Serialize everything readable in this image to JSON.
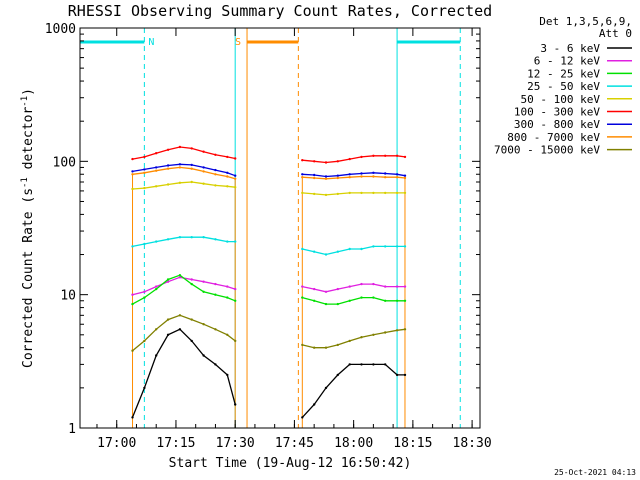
{
  "chart_data": {
    "type": "line",
    "title": "RHESSI Observing Summary Count Rates, Corrected",
    "xlabel": "Start Time (19-Aug-12 16:50:42)",
    "ylabel_main": "Corrected Count Rate (s",
    "ylabel_sup1": "-1",
    "ylabel_mid": " detector",
    "ylabel_sup2": "-1",
    "ylabel_end": ")",
    "y_scale": "log",
    "ylim": [
      1,
      1000
    ],
    "xlim": [
      "16:50:42",
      "18:32:00"
    ],
    "x_ticks": [
      "17:00",
      "17:15",
      "17:30",
      "17:45",
      "18:00",
      "18:15",
      "18:30"
    ],
    "y_ticks": [
      "1",
      "10",
      "100",
      "1000"
    ],
    "legend_header": [
      "Det 1,3,5,6,9,",
      "Att 0"
    ],
    "legend_position": "right",
    "footer": "25-Oct-2021 04:13",
    "series": [
      {
        "name": "3 - 6 keV",
        "color": "#000000",
        "segments": [
          {
            "t": [
              "17:04:00",
              "17:07:00",
              "17:10:00",
              "17:13:00",
              "17:16:00",
              "17:19:00",
              "17:22:00",
              "17:25:00",
              "17:28:00",
              "17:30:00"
            ],
            "v": [
              1.2,
              2.0,
              3.5,
              5.0,
              5.5,
              4.5,
              3.5,
              3.0,
              2.5,
              1.5
            ]
          },
          {
            "t": [
              "17:47:00",
              "17:50:00",
              "17:53:00",
              "17:56:00",
              "17:59:00",
              "18:02:00",
              "18:05:00",
              "18:08:00",
              "18:11:00",
              "18:13:00"
            ],
            "v": [
              1.2,
              1.5,
              2.0,
              2.5,
              3.0,
              3.0,
              3.0,
              3.0,
              2.5,
              2.5
            ]
          }
        ]
      },
      {
        "name": "6 - 12 keV",
        "color": "#e020e0",
        "segments": [
          {
            "t": [
              "17:04:00",
              "17:07:00",
              "17:10:00",
              "17:13:00",
              "17:16:00",
              "17:19:00",
              "17:22:00",
              "17:25:00",
              "17:28:00",
              "17:30:00"
            ],
            "v": [
              10.0,
              10.5,
              11.5,
              12.5,
              13.5,
              13.0,
              12.5,
              12.0,
              11.5,
              11.0
            ]
          },
          {
            "t": [
              "17:47:00",
              "17:50:00",
              "17:53:00",
              "17:56:00",
              "17:59:00",
              "18:02:00",
              "18:05:00",
              "18:08:00",
              "18:11:00",
              "18:13:00"
            ],
            "v": [
              11.5,
              11.0,
              10.5,
              11.0,
              11.5,
              12.0,
              12.0,
              11.5,
              11.5,
              11.5
            ]
          }
        ]
      },
      {
        "name": "12 - 25 keV",
        "color": "#00e000",
        "segments": [
          {
            "t": [
              "17:04:00",
              "17:07:00",
              "17:10:00",
              "17:13:00",
              "17:16:00",
              "17:19:00",
              "17:22:00",
              "17:25:00",
              "17:28:00",
              "17:30:00"
            ],
            "v": [
              8.5,
              9.5,
              11.0,
              13.0,
              14.0,
              12.0,
              10.5,
              10.0,
              9.5,
              9.0
            ]
          },
          {
            "t": [
              "17:47:00",
              "17:50:00",
              "17:53:00",
              "17:56:00",
              "17:59:00",
              "18:02:00",
              "18:05:00",
              "18:08:00",
              "18:11:00",
              "18:13:00"
            ],
            "v": [
              9.5,
              9.0,
              8.5,
              8.5,
              9.0,
              9.5,
              9.5,
              9.0,
              9.0,
              9.0
            ]
          }
        ]
      },
      {
        "name": "25 - 50 keV",
        "color": "#00e0e0",
        "segments": [
          {
            "t": [
              "17:04:00",
              "17:07:00",
              "17:10:00",
              "17:13:00",
              "17:16:00",
              "17:19:00",
              "17:22:00",
              "17:25:00",
              "17:28:00",
              "17:30:00"
            ],
            "v": [
              23,
              24,
              25,
              26,
              27,
              27,
              27,
              26,
              25,
              25
            ]
          },
          {
            "t": [
              "17:47:00",
              "17:50:00",
              "17:53:00",
              "17:56:00",
              "17:59:00",
              "18:02:00",
              "18:05:00",
              "18:08:00",
              "18:11:00",
              "18:13:00"
            ],
            "v": [
              22,
              21,
              20,
              21,
              22,
              22,
              23,
              23,
              23,
              23
            ]
          }
        ]
      },
      {
        "name": "50 - 100 keV",
        "color": "#d8d000",
        "segments": [
          {
            "t": [
              "17:04:00",
              "17:07:00",
              "17:10:00",
              "17:13:00",
              "17:16:00",
              "17:19:00",
              "17:22:00",
              "17:25:00",
              "17:28:00",
              "17:30:00"
            ],
            "v": [
              62,
              63,
              65,
              67,
              69,
              70,
              68,
              66,
              65,
              64
            ]
          },
          {
            "t": [
              "17:47:00",
              "17:50:00",
              "17:53:00",
              "17:56:00",
              "17:59:00",
              "18:02:00",
              "18:05:00",
              "18:08:00",
              "18:11:00",
              "18:13:00"
            ],
            "v": [
              58,
              57,
              56,
              57,
              58,
              58,
              58,
              58,
              58,
              58
            ]
          }
        ]
      },
      {
        "name": "100 - 300 keV",
        "color": "#ff0000",
        "segments": [
          {
            "t": [
              "17:04:00",
              "17:07:00",
              "17:10:00",
              "17:13:00",
              "17:16:00",
              "17:19:00",
              "17:22:00",
              "17:25:00",
              "17:28:00",
              "17:30:00"
            ],
            "v": [
              104,
              108,
              115,
              122,
              128,
              125,
              118,
              112,
              108,
              105
            ]
          },
          {
            "t": [
              "17:47:00",
              "17:50:00",
              "17:53:00",
              "17:56:00",
              "17:59:00",
              "18:02:00",
              "18:05:00",
              "18:08:00",
              "18:11:00",
              "18:13:00"
            ],
            "v": [
              102,
              100,
              98,
              100,
              104,
              108,
              110,
              110,
              110,
              108
            ]
          }
        ]
      },
      {
        "name": "300 - 800 keV",
        "color": "#0000dd",
        "segments": [
          {
            "t": [
              "17:04:00",
              "17:07:00",
              "17:10:00",
              "17:13:00",
              "17:16:00",
              "17:19:00",
              "17:22:00",
              "17:25:00",
              "17:28:00",
              "17:30:00"
            ],
            "v": [
              84,
              87,
              90,
              93,
              95,
              94,
              90,
              86,
              82,
              78
            ]
          },
          {
            "t": [
              "17:47:00",
              "17:50:00",
              "17:53:00",
              "17:56:00",
              "17:59:00",
              "18:02:00",
              "18:05:00",
              "18:08:00",
              "18:11:00",
              "18:13:00"
            ],
            "v": [
              80,
              79,
              77,
              78,
              80,
              81,
              82,
              81,
              80,
              78
            ]
          }
        ]
      },
      {
        "name": "800 - 7000 keV",
        "color": "#ff8c00",
        "segments": [
          {
            "t": [
              "17:04:00",
              "17:07:00",
              "17:10:00",
              "17:13:00",
              "17:16:00",
              "17:19:00",
              "17:22:00",
              "17:25:00",
              "17:28:00",
              "17:30:00"
            ],
            "v": [
              80,
              82,
              85,
              88,
              90,
              88,
              84,
              80,
              77,
              74
            ]
          },
          {
            "t": [
              "17:47:00",
              "17:50:00",
              "17:53:00",
              "17:56:00",
              "17:59:00",
              "18:02:00",
              "18:05:00",
              "18:08:00",
              "18:11:00",
              "18:13:00"
            ],
            "v": [
              76,
              75,
              74,
              75,
              76,
              77,
              77,
              76,
              76,
              75
            ]
          }
        ]
      },
      {
        "name": "7000 - 15000 keV",
        "color": "#808000",
        "segments": [
          {
            "t": [
              "17:04:00",
              "17:07:00",
              "17:10:00",
              "17:13:00",
              "17:16:00",
              "17:19:00",
              "17:22:00",
              "17:25:00",
              "17:28:00",
              "17:30:00"
            ],
            "v": [
              3.8,
              4.5,
              5.5,
              6.5,
              7.0,
              6.5,
              6.0,
              5.5,
              5.0,
              4.5
            ]
          },
          {
            "t": [
              "17:47:00",
              "17:50:00",
              "17:53:00",
              "17:56:00",
              "17:59:00",
              "18:02:00",
              "18:05:00",
              "18:08:00",
              "18:11:00",
              "18:13:00"
            ],
            "v": [
              4.2,
              4.0,
              4.0,
              4.2,
              4.5,
              4.8,
              5.0,
              5.2,
              5.4,
              5.5
            ]
          }
        ]
      }
    ],
    "rate_edges": [
      {
        "t": "17:04:00",
        "color": "#ff8c00",
        "from": 1,
        "to": 80
      },
      {
        "t": "17:30:00",
        "color": "#ff8c00",
        "from": 1,
        "to": 74
      },
      {
        "t": "17:47:00",
        "color": "#ff8c00",
        "from": 1,
        "to": 76
      },
      {
        "t": "18:13:00",
        "color": "#ff8c00",
        "from": 1,
        "to": 75
      }
    ],
    "markers": [
      {
        "label": "N",
        "color": "#00e0e0",
        "bar_start": "16:50:42",
        "bar_end": "17:07:00",
        "dashed_at": "17:07:00",
        "solid_at": "16:50:42"
      },
      {
        "label": "",
        "color": "#00e0e0",
        "bar_start": "18:11:00",
        "bar_end": "18:27:00",
        "dashed_at": "18:27:00",
        "solid_at": "18:11:00"
      },
      {
        "label": "S",
        "color": "#ff8c00",
        "bar_start": "17:33:00",
        "bar_end": "17:46:00",
        "dashed_at": "17:46:00",
        "solid_at": "17:33:00"
      },
      {
        "label": "",
        "color": "#00e0e0",
        "bar_start": "",
        "bar_end": "",
        "dashed_at": "",
        "solid_at": "17:30:00"
      }
    ]
  }
}
